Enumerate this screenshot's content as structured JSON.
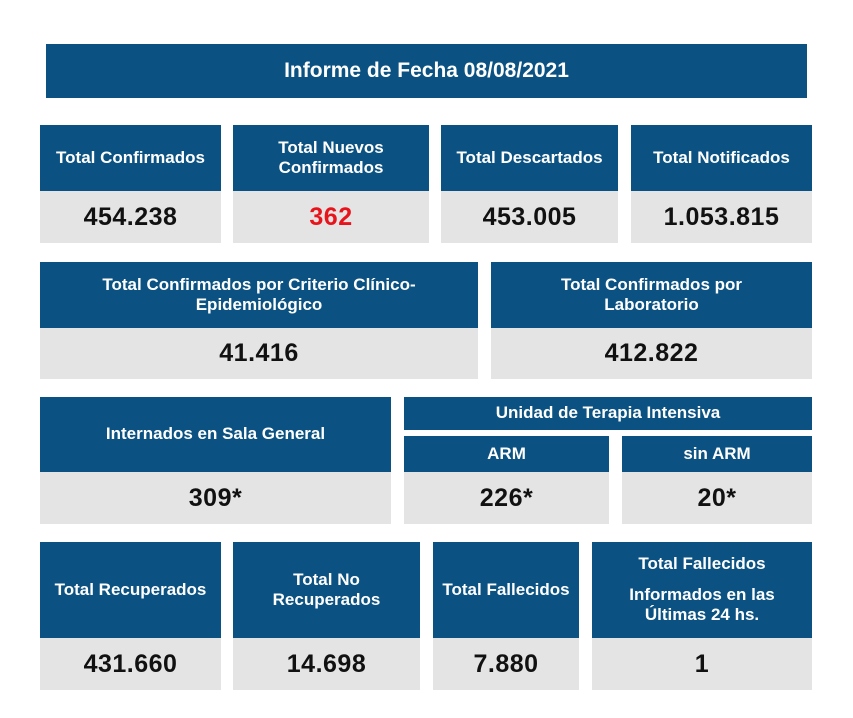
{
  "report": {
    "title": "Informe de Fecha 08/08/2021"
  },
  "row1": [
    {
      "label": "Total Confirmados",
      "value": "454.238"
    },
    {
      "label": "Total Nuevos Confirmados",
      "value": "362"
    },
    {
      "label": "Total Descartados",
      "value": "453.005"
    },
    {
      "label": "Total Notificados",
      "value": "1.053.815"
    }
  ],
  "row2": [
    {
      "label": "Total Confirmados por Criterio Clínico-Epidemiológico",
      "value": "41.416"
    },
    {
      "label": "Total Confirmados por Laboratorio",
      "value": "412.822"
    }
  ],
  "row3": {
    "sala_general": {
      "label": "Internados en Sala General",
      "value": "309*"
    },
    "uti": {
      "label": "Unidad de Terapia Intensiva",
      "arm": {
        "label": "ARM",
        "value": "226*"
      },
      "sin_arm": {
        "label": "sin ARM",
        "value": "20*"
      }
    }
  },
  "row4": [
    {
      "label": "Total Recuperados",
      "value": "431.660"
    },
    {
      "label": "Total No Recuperados",
      "value": "14.698"
    },
    {
      "label": "Total Fallecidos",
      "value": "7.880"
    },
    {
      "label": "Total Fallecidos",
      "label2": "Informados en las Últimas 24 hs.",
      "value": "1"
    }
  ],
  "colors": {
    "header_blue": "#0b5282",
    "value_gray": "#e4e4e4",
    "highlight_red": "#e8141c"
  }
}
